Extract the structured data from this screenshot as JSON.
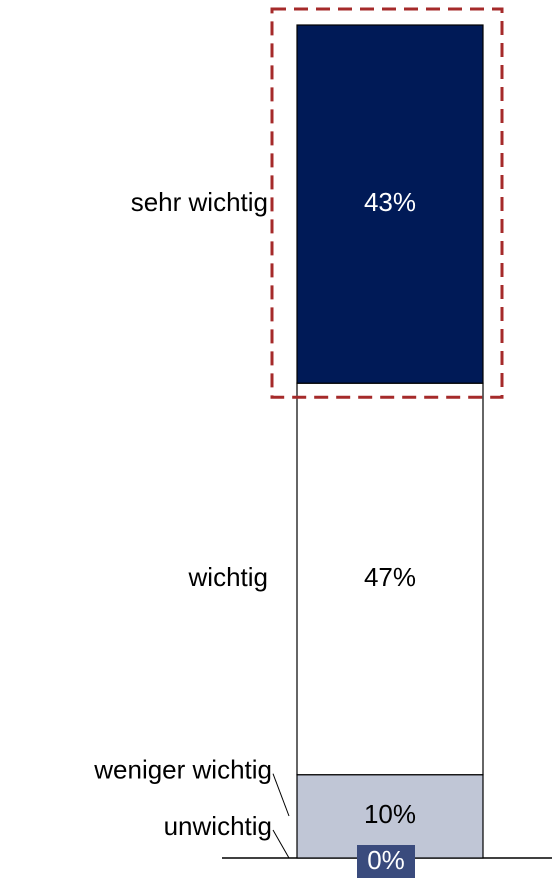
{
  "chart_data": {
    "type": "bar",
    "stacked": true,
    "ylim": [
      0,
      100
    ],
    "series": [
      {
        "name": "unwichtig",
        "color": "#3a4b7d",
        "values": [
          0
        ],
        "value_labels": [
          "0%"
        ]
      },
      {
        "name": "weniger wichtig",
        "color": "#c0c6d6",
        "values": [
          10
        ],
        "value_labels": [
          "10%"
        ]
      },
      {
        "name": "wichtig",
        "color": "#ffffff",
        "values": [
          47
        ],
        "value_labels": [
          "47%"
        ]
      },
      {
        "name": "sehr wichtig",
        "color": "#001a57",
        "values": [
          43
        ],
        "value_labels": [
          "43%"
        ]
      }
    ]
  }
}
